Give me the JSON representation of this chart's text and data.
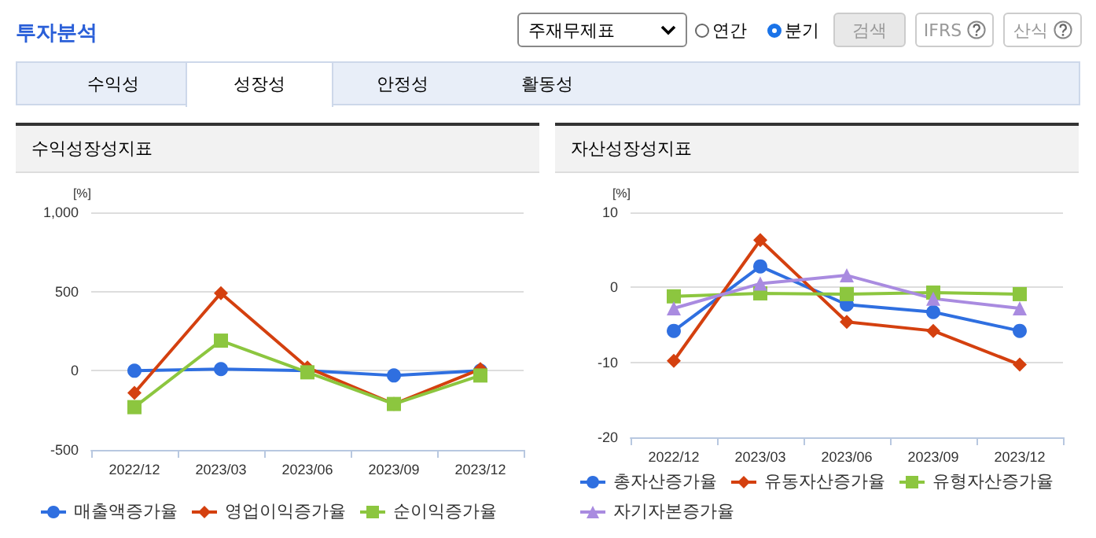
{
  "chart_data": [
    {
      "type": "line",
      "title": "수익성장성지표",
      "ylabel": "[%]",
      "annotations": [
        "투자분석",
        "주재무제표",
        "연간",
        "분기",
        "검색",
        "IFRS",
        "산식",
        "수익성",
        "성장성",
        "안정성",
        "활동성"
      ],
      "categories": [
        "2022/12",
        "2023/03",
        "2023/06",
        "2023/09",
        "2023/12"
      ],
      "series": [
        {
          "name": "매출액증가율",
          "color": "#2f6fe0",
          "marker": "circle",
          "values": [
            0,
            10,
            0,
            -30,
            0
          ]
        },
        {
          "name": "영업이익증가율",
          "color": "#d4400f",
          "marker": "diamond",
          "values": [
            -140,
            490,
            20,
            -210,
            10
          ]
        },
        {
          "name": "순이익증가율",
          "color": "#8cc63f",
          "marker": "square",
          "values": [
            -230,
            190,
            -10,
            -210,
            -30
          ]
        }
      ],
      "ylim": [
        -500,
        1000
      ],
      "yticks": [
        -500,
        0,
        500,
        {
          "value": 1000,
          "label": "1,000"
        }
      ],
      "grid": "y",
      "legend": "bottom",
      "line_style": "solid"
    },
    {
      "type": "line",
      "title": "자산성장성지표",
      "ylabel": "[%]",
      "categories": [
        "2022/12",
        "2023/03",
        "2023/06",
        "2023/09",
        "2023/12"
      ],
      "series": [
        {
          "name": "총자산증가율",
          "color": "#2f6fe0",
          "marker": "circle",
          "values": [
            -5.8,
            2.8,
            -2.3,
            -3.3,
            -5.8
          ]
        },
        {
          "name": "유동자산증가율",
          "color": "#d4400f",
          "marker": "diamond",
          "values": [
            -9.8,
            6.3,
            -4.6,
            -5.8,
            -10.3
          ]
        },
        {
          "name": "유형자산증가율",
          "color": "#8cc63f",
          "marker": "square",
          "values": [
            -1.2,
            -0.8,
            -0.9,
            -0.7,
            -0.9
          ]
        },
        {
          "name": "자기자본증가율",
          "color": "#a98be0",
          "marker": "triangle",
          "values": [
            -2.8,
            0.5,
            1.6,
            -1.5,
            -2.8
          ]
        }
      ],
      "ylim": [
        -20,
        10
      ],
      "yticks": [
        -20,
        -10,
        0,
        10
      ],
      "grid": "y",
      "legend": "bottom",
      "line_style": "solid"
    }
  ]
}
